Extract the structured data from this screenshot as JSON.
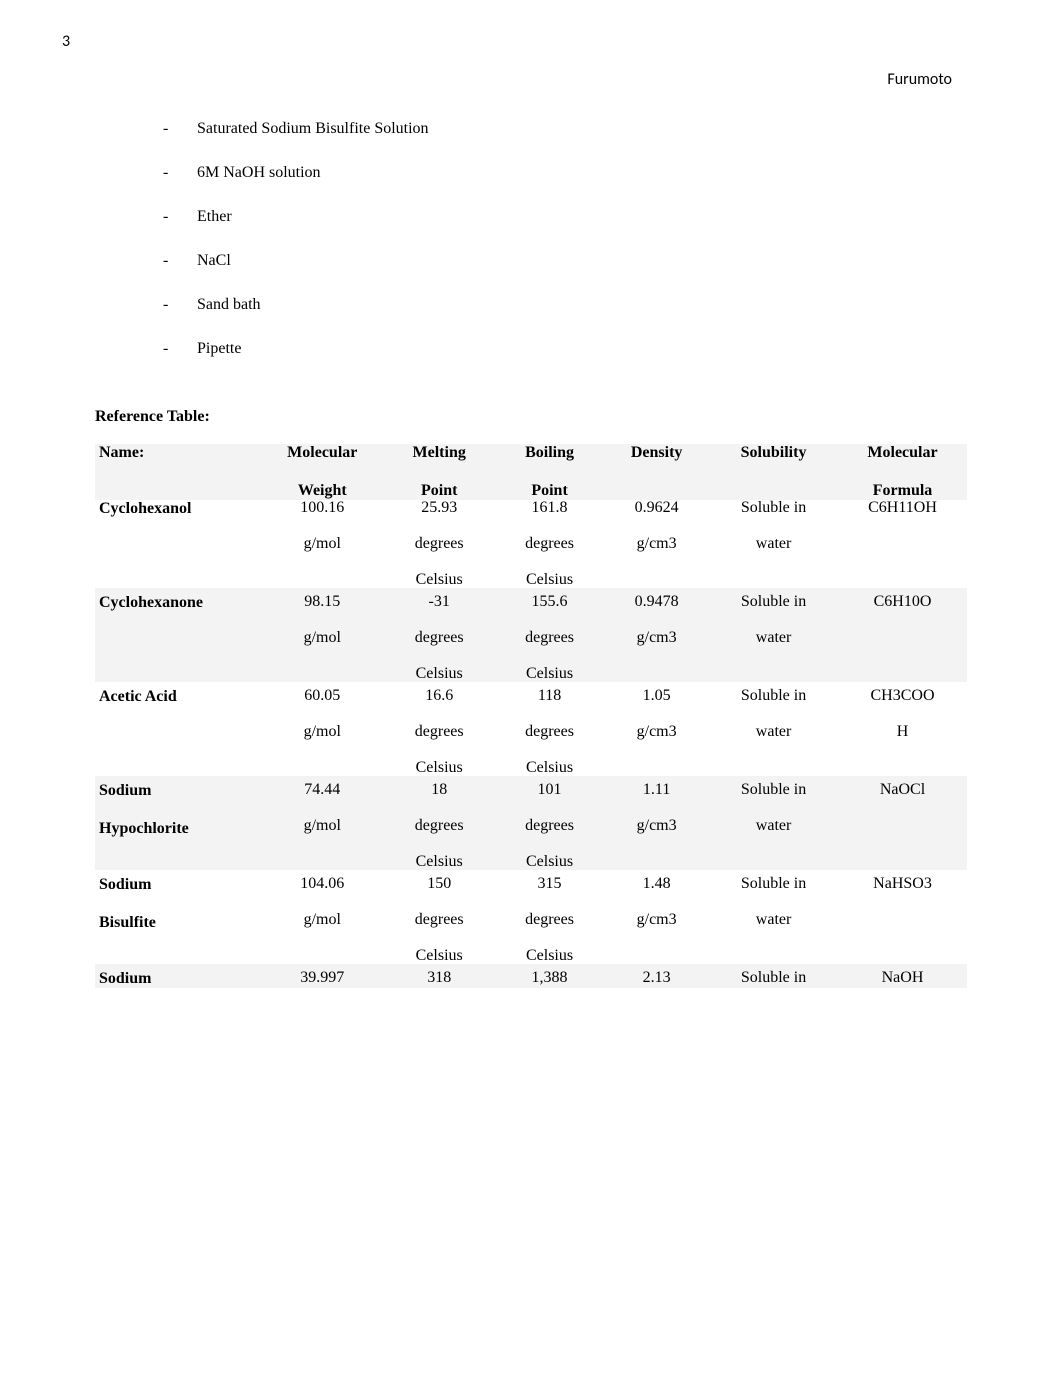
{
  "page_number": "3",
  "header_name": "Furumoto",
  "bullets": [
    "Saturated Sodium Bisulfite Solution",
    "6M NaOH solution",
    "Ether",
    "NaCl",
    "Sand bath",
    "Pipette"
  ],
  "section_heading": "Reference Table:",
  "table": {
    "headers": {
      "name_l1": "Name:",
      "mw_l1": "Molecular",
      "mw_l2": "Weight",
      "mp_l1": "Melting",
      "mp_l2": "Point",
      "bp_l1": "Boiling",
      "bp_l2": "Point",
      "den_l1": "Density",
      "sol_l1": "Solubility",
      "for_l1": "Molecular",
      "for_l2": "Formula"
    },
    "rows": [
      {
        "name_l1": "Cyclohexanol",
        "name_l2": "",
        "mw_l1": "100.16",
        "mw_l2": "g/mol",
        "mp_l1": "25.93",
        "mp_l2": "degrees",
        "mp_l3": "Celsius",
        "bp_l1": "161.8",
        "bp_l2": "degrees",
        "bp_l3": "Celsius",
        "den_l1": "0.9624",
        "den_l2": "g/cm3",
        "sol_l1": "Soluble in",
        "sol_l2": "water",
        "for_l1": "C6H11OH",
        "for_l2": ""
      },
      {
        "name_l1": "Cyclohexanone",
        "name_l2": "",
        "mw_l1": "98.15",
        "mw_l2": "g/mol",
        "mp_l1": "-31",
        "mp_l2": "degrees",
        "mp_l3": "Celsius",
        "bp_l1": "155.6",
        "bp_l2": "degrees",
        "bp_l3": "Celsius",
        "den_l1": "0.9478",
        "den_l2": "g/cm3",
        "sol_l1": "Soluble in",
        "sol_l2": "water",
        "for_l1": "C6H10O",
        "for_l2": ""
      },
      {
        "name_l1": "Acetic Acid",
        "name_l2": "",
        "mw_l1": "60.05",
        "mw_l2": "g/mol",
        "mp_l1": "16.6",
        "mp_l2": "degrees",
        "mp_l3": "Celsius",
        "bp_l1": "118",
        "bp_l2": "degrees",
        "bp_l3": "Celsius",
        "den_l1": "1.05",
        "den_l2": "g/cm3",
        "sol_l1": "Soluble in",
        "sol_l2": "water",
        "for_l1": "CH3COO",
        "for_l2": "H"
      },
      {
        "name_l1": "Sodium",
        "name_l2": "Hypochlorite",
        "mw_l1": "74.44",
        "mw_l2": "g/mol",
        "mp_l1": "18",
        "mp_l2": "degrees",
        "mp_l3": "Celsius",
        "bp_l1": "101",
        "bp_l2": "degrees",
        "bp_l3": "Celsius",
        "den_l1": "1.11",
        "den_l2": "g/cm3",
        "sol_l1": "Soluble in",
        "sol_l2": "water",
        "for_l1": "NaOCl",
        "for_l2": ""
      },
      {
        "name_l1": "Sodium",
        "name_l2": "Bisulfite",
        "mw_l1": "104.06",
        "mw_l2": "g/mol",
        "mp_l1": "150",
        "mp_l2": "degrees",
        "mp_l3": "Celsius",
        "bp_l1": "315",
        "bp_l2": "degrees",
        "bp_l3": "Celsius",
        "den_l1": "1.48",
        "den_l2": "g/cm3",
        "sol_l1": "Soluble in",
        "sol_l2": "water",
        "for_l1": "NaHSO3",
        "for_l2": ""
      },
      {
        "name_l1": "Sodium",
        "name_l2": "",
        "mw_l1": "39.997",
        "mw_l2": "",
        "mp_l1": "318",
        "mp_l2": "",
        "mp_l3": "",
        "bp_l1": "1,388",
        "bp_l2": "",
        "bp_l3": "",
        "den_l1": "2.13",
        "den_l2": "",
        "sol_l1": "Soluble in",
        "sol_l2": "",
        "for_l1": "NaOH",
        "for_l2": ""
      }
    ],
    "colors": {
      "odd_row_bg": "#f3f3f3",
      "even_row_bg": "#ffffff",
      "text_color": "#000000",
      "page_bg": "#ffffff"
    }
  }
}
